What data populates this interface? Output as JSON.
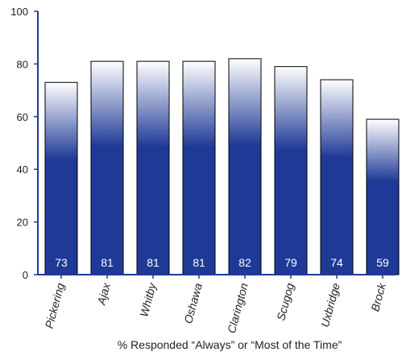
{
  "chart_data": {
    "type": "bar",
    "categories": [
      "Pickering",
      "Ajax",
      "Whitby",
      "Oshawa",
      "Clarington",
      "Scugog",
      "Uxbridge",
      "Brock"
    ],
    "values": [
      73,
      81,
      81,
      81,
      82,
      79,
      74,
      59
    ],
    "ylim": [
      0,
      100
    ],
    "yticks": [
      0,
      20,
      40,
      60,
      80,
      100
    ],
    "xlabel": "% Responded “Always” or “Most of the Time”",
    "ylabel": "",
    "grid": false,
    "legend": "none",
    "colors": {
      "bar_base": "#1f3a96",
      "bar_top": "#ffffff",
      "axis": "#1f3a96"
    }
  }
}
